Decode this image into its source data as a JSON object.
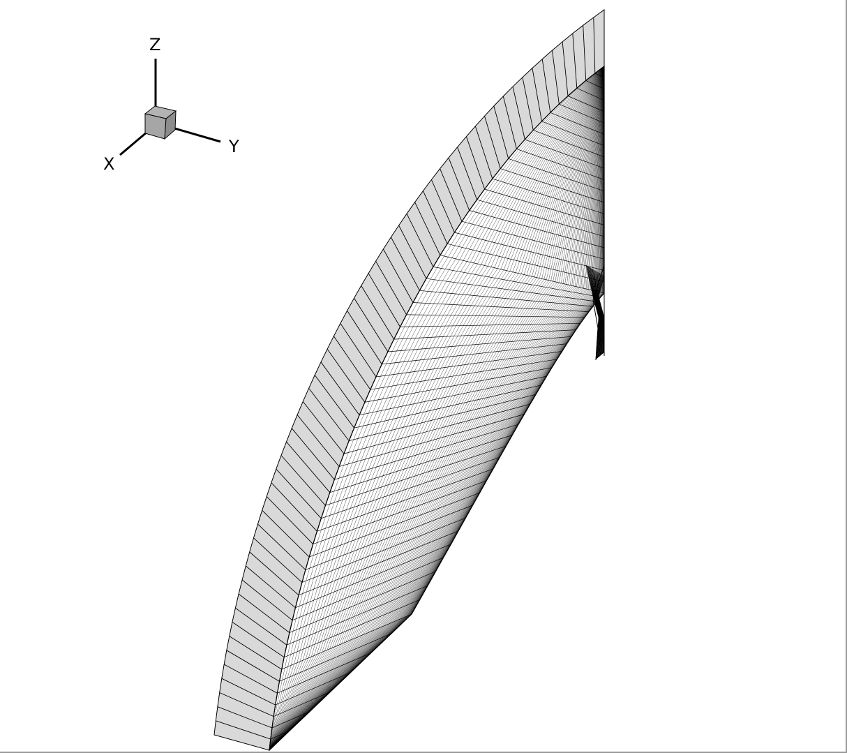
{
  "colors": {
    "background": "#ffffff",
    "mesh_line": "#000000",
    "face_fill": "#d9d9d9",
    "triad_cube_top": "#b3b3b3",
    "triad_cube_front": "#a6a6a6",
    "triad_cube_side": "#8c8c8c",
    "frame_border": "#9a9a9a"
  },
  "triad": {
    "labels": {
      "z": "Z",
      "y": "Y",
      "x": "X"
    },
    "icon": "3d-axis-triad-icon"
  },
  "mesh": {
    "icon": "structured-grid-mesh",
    "rim_divisions": 60,
    "radial_divisions": 90,
    "thickness_divisions": 1
  }
}
